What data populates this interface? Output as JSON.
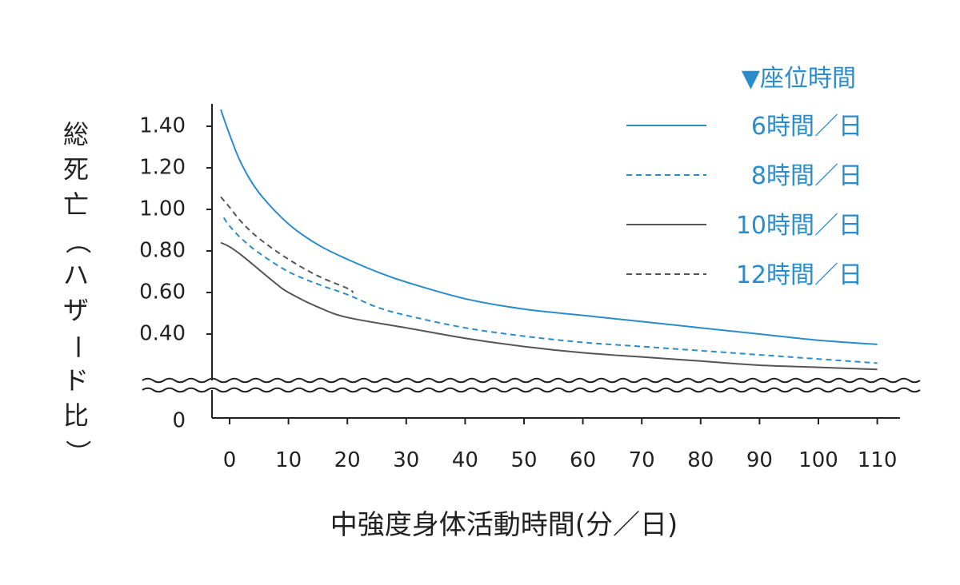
{
  "chart_data": {
    "type": "line",
    "title": "",
    "xlabel": "中強度身体活動時間(分／日)",
    "ylabel": "総死亡（ハザード比）",
    "xlim": [
      -3,
      113
    ],
    "xticks": [
      0,
      10,
      20,
      30,
      40,
      50,
      60,
      70,
      80,
      90,
      100,
      110
    ],
    "ylim": [
      0.3,
      1.48
    ],
    "yticks": [
      "1.40",
      "1.20",
      "1.00",
      "0.80",
      "0.60",
      "0.40"
    ],
    "ybottom_label": "0",
    "axis_break": true,
    "legend": {
      "title": "▼座位時間",
      "placement": "top-right"
    },
    "colors": {
      "blue": "#2b8ccc",
      "gray": "#555555"
    },
    "series": [
      {
        "name": "6時間／日",
        "color": "#2b8ccc",
        "dash": false,
        "x": [
          -1.5,
          0,
          2,
          5,
          10,
          15,
          20,
          25,
          30,
          40,
          50,
          60,
          70,
          80,
          90,
          100,
          110
        ],
        "y": [
          1.48,
          1.36,
          1.22,
          1.08,
          0.93,
          0.83,
          0.76,
          0.7,
          0.65,
          0.57,
          0.52,
          0.49,
          0.46,
          0.43,
          0.4,
          0.37,
          0.35
        ]
      },
      {
        "name": "8時間／日",
        "color": "#2b8ccc",
        "dash": true,
        "x": [
          -1,
          0,
          2,
          5,
          10,
          15,
          20,
          25,
          30,
          40,
          50,
          60,
          70,
          80,
          90,
          100,
          110
        ],
        "y": [
          0.96,
          0.92,
          0.86,
          0.79,
          0.7,
          0.64,
          0.59,
          0.53,
          0.49,
          0.43,
          0.39,
          0.36,
          0.34,
          0.32,
          0.3,
          0.28,
          0.26
        ]
      },
      {
        "name": "10時間／日",
        "color": "#555555",
        "dash": false,
        "x": [
          -1.5,
          0,
          2,
          5,
          8,
          10,
          15,
          20,
          30,
          40,
          50,
          60,
          70,
          80,
          90,
          100,
          110
        ],
        "y": [
          0.84,
          0.82,
          0.78,
          0.71,
          0.64,
          0.6,
          0.53,
          0.48,
          0.43,
          0.38,
          0.34,
          0.31,
          0.29,
          0.27,
          0.25,
          0.24,
          0.23
        ]
      },
      {
        "name": "12時間／日",
        "color": "#555555",
        "dash": true,
        "x": [
          -1.5,
          0,
          2,
          5,
          10,
          15,
          20,
          21
        ],
        "y": [
          1.06,
          1.01,
          0.94,
          0.86,
          0.76,
          0.68,
          0.62,
          0.6
        ]
      }
    ]
  }
}
